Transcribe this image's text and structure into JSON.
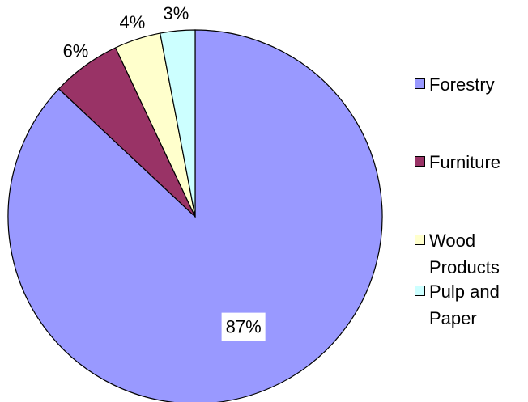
{
  "chart_data": {
    "type": "pie",
    "categories": [
      "Forestry",
      "Furniture",
      "Wood Products",
      "Pulp and Paper"
    ],
    "values": [
      87,
      6,
      4,
      3
    ],
    "value_labels": [
      "87%",
      "6%",
      "4%",
      "3%"
    ],
    "colors": [
      "#9999ff",
      "#993366",
      "#ffffcc",
      "#ccffff"
    ],
    "legend": "right"
  }
}
